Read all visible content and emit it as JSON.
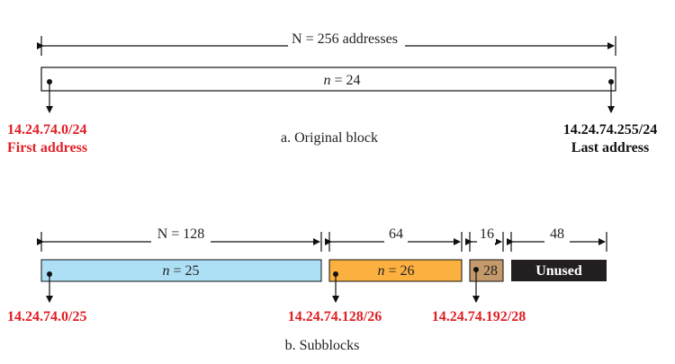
{
  "original": {
    "size_label": "N = 256 addresses",
    "prefix_italic": "n",
    "prefix_rest": " = 24",
    "first_address": "14.24.74.0/24",
    "first_label": "First address",
    "last_address": "14.24.74.255/24",
    "last_label": "Last address",
    "caption": "a. Original block"
  },
  "subblocks": {
    "caption": "b. Subblocks",
    "blocks": [
      {
        "size_label": "N = 128",
        "prefix_italic": "n",
        "prefix_rest": " = 25",
        "address": "14.24.74.0/25",
        "color": "#aee0f5"
      },
      {
        "size_label": "64",
        "prefix_italic": "n",
        "prefix_rest": " = 26",
        "address": "14.24.74.128/26",
        "color": "#fbb040"
      },
      {
        "size_label": "16",
        "prefix_italic": "",
        "prefix_rest": "28",
        "address": "14.24.74.192/28",
        "color": "#c49a6c"
      },
      {
        "size_label": "48",
        "prefix_italic": "",
        "prefix_rest": "Unused",
        "address": "",
        "color": "#231f20"
      }
    ]
  },
  "colors": {
    "accent_red": "#e01f26",
    "line": "#111111"
  }
}
